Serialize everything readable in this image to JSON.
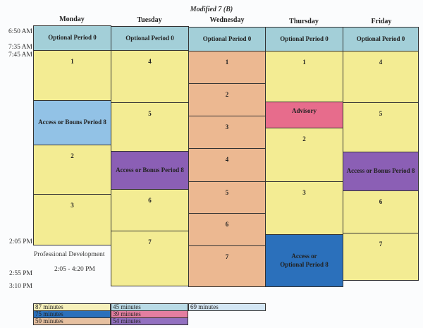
{
  "title": "Modified 7 (B)",
  "days": [
    "Monday",
    "Tuesday",
    "Wednesday",
    "Thursday",
    "Friday"
  ],
  "times": [
    "6:50 AM",
    "7:35 AM",
    "7:45 AM",
    "2:05 PM",
    "2:55 PM",
    "3:10 PM"
  ],
  "optional": "Optional Period 0",
  "monday": [
    "1",
    "Access or Bouns Period 8",
    "2",
    "3"
  ],
  "tuesday": [
    "4",
    "5",
    "Access or Bonus Period 8",
    "6",
    "7"
  ],
  "wednesday": [
    "1",
    "2",
    "3",
    "4",
    "5",
    "6",
    "7"
  ],
  "thursday": [
    "1",
    "Advisory",
    "2",
    "3",
    "Access or Optional Period 8"
  ],
  "friday": [
    "4",
    "5",
    "Access or Bonus Period 8",
    "6",
    "7"
  ],
  "pd": {
    "label": "Professional Development",
    "time": "2:05 - 4:20 PM"
  },
  "legend": [
    "87 minutes",
    "45 minutes",
    "69 minutes",
    "75 minutes",
    "39 minutes",
    "50 minutes",
    "54 minutes"
  ],
  "colors": {
    "yellow": "#f3ec93",
    "orange": "#ecb891",
    "teal": "#a3cfd8",
    "light_blue": "#92c2e6",
    "purple": "#8b5fb5",
    "pink": "#e76c8c",
    "blue": "#2b70bb"
  }
}
